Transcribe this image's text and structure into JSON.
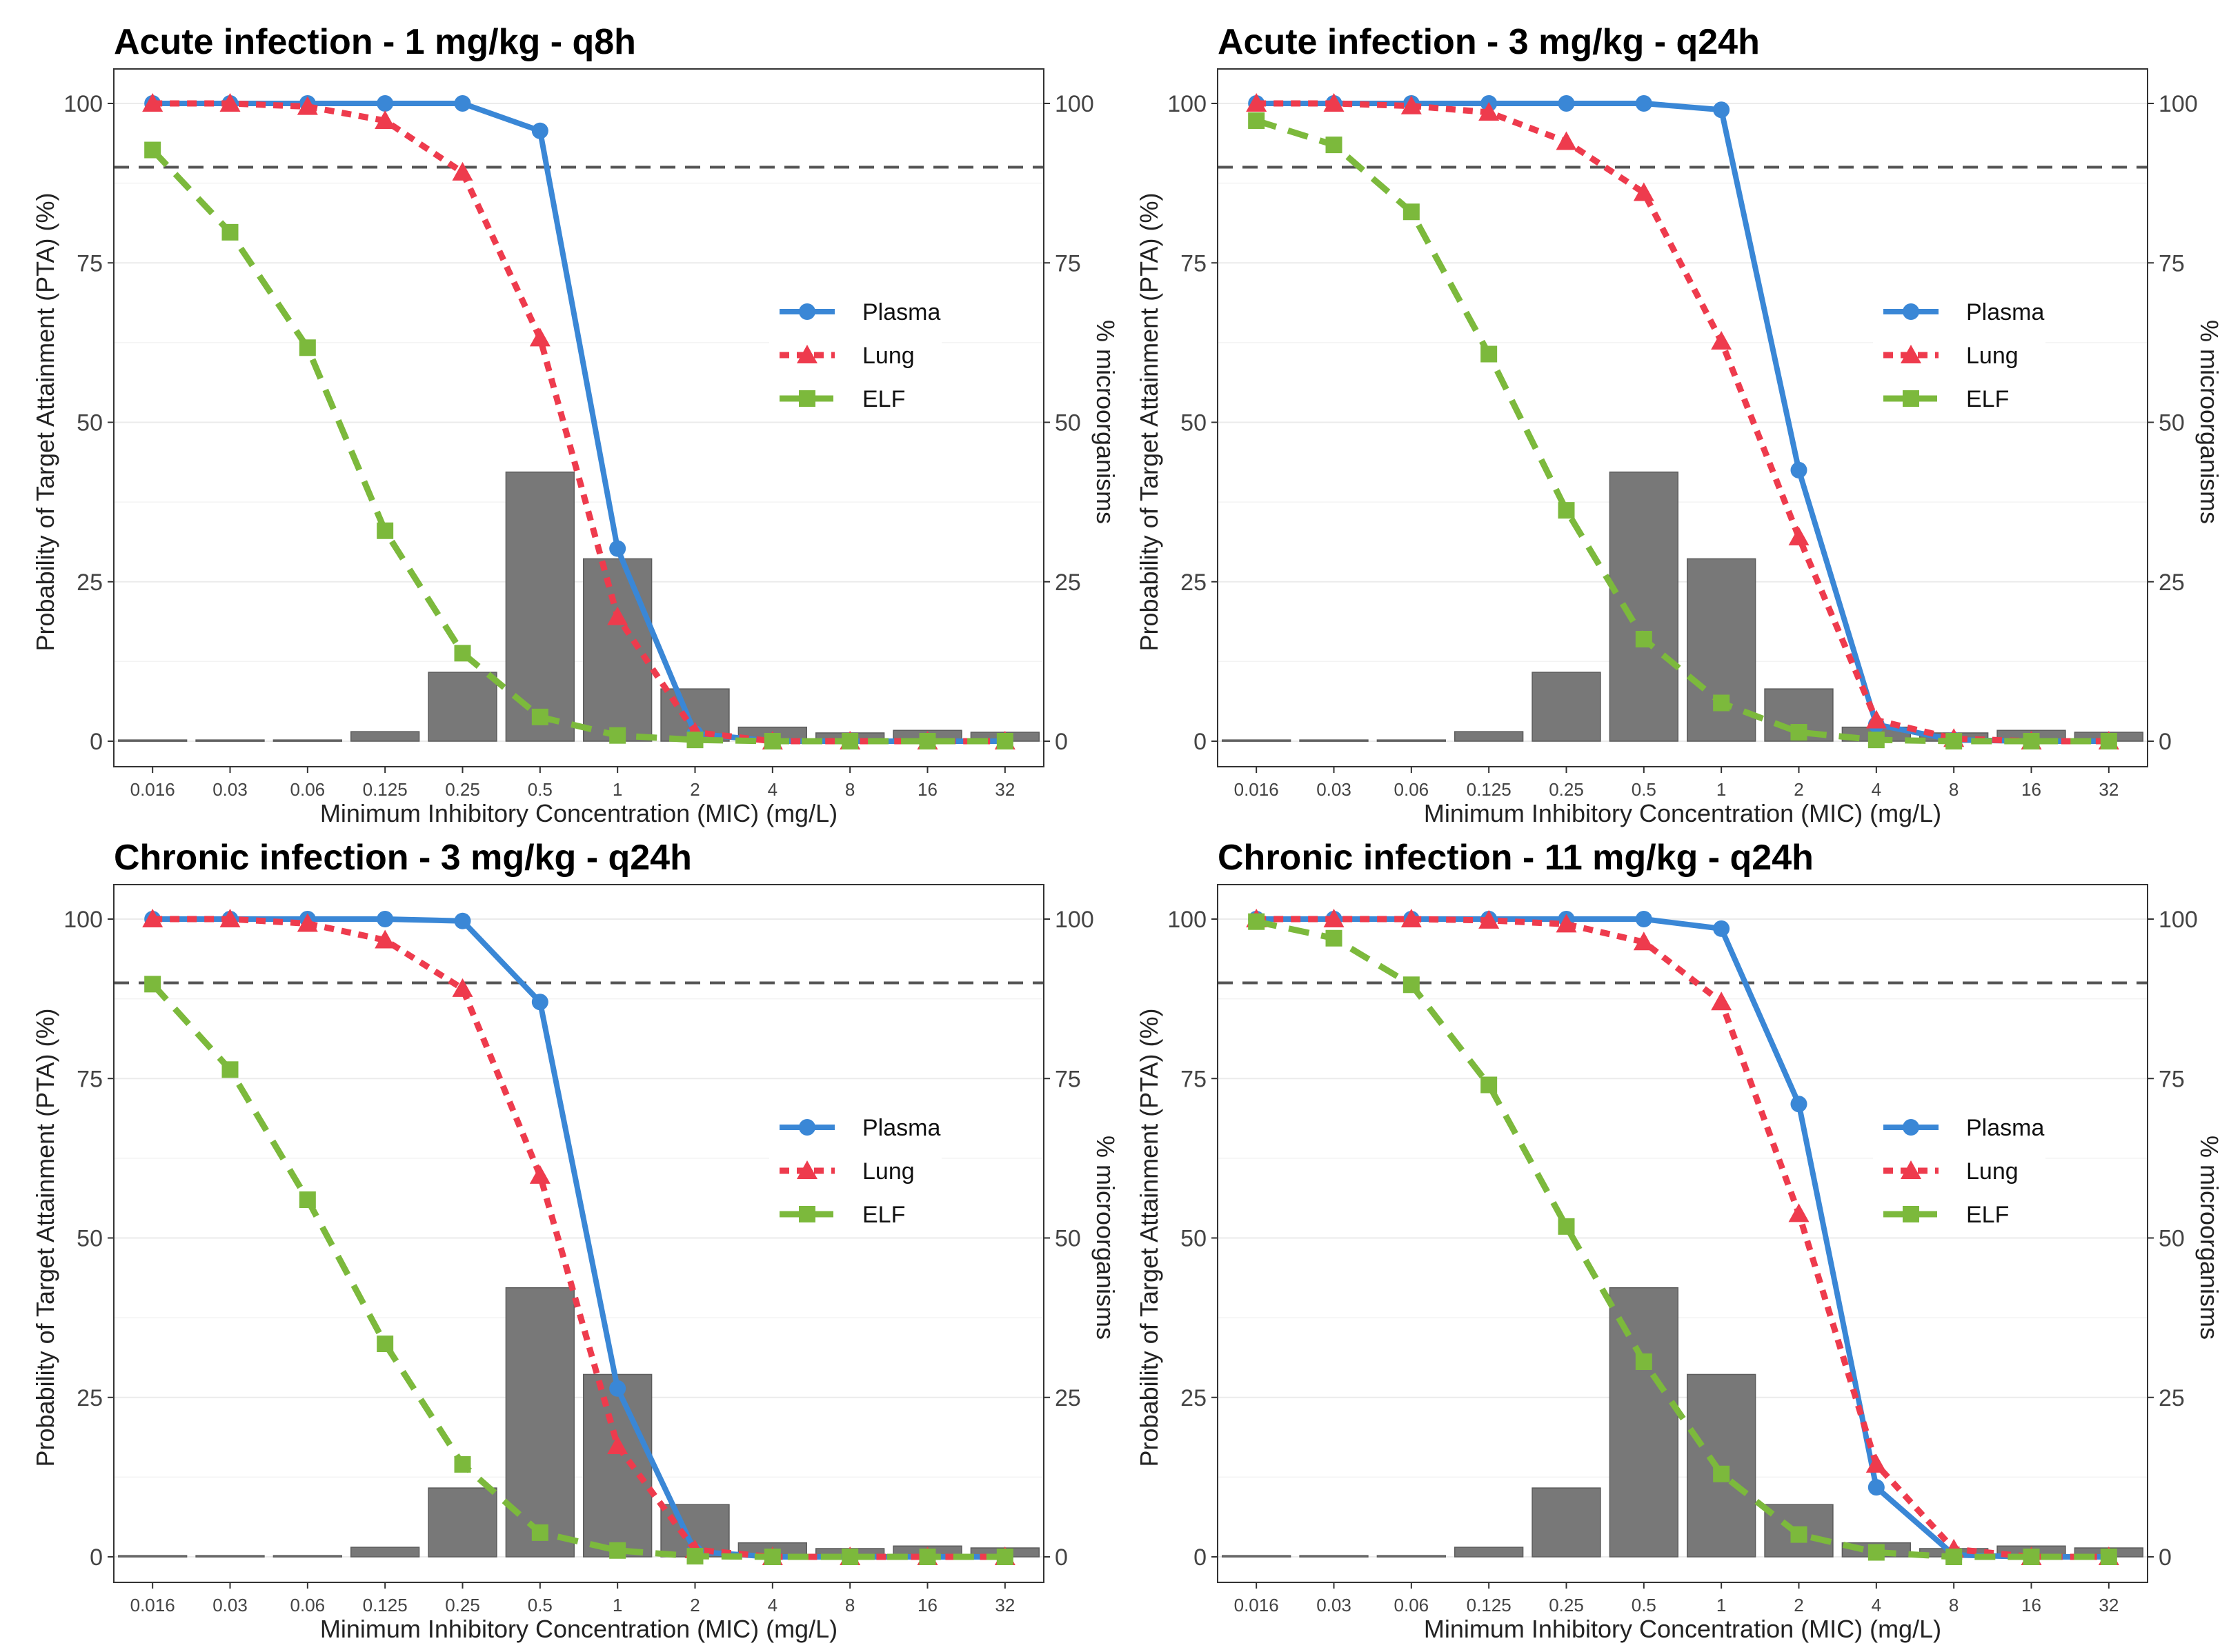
{
  "chart_data": {
    "type": "line",
    "xlabel": "Minimum Inhibitory Concentration (MIC) (mg/L)",
    "ylabel": "Probability of Target Attainment (PTA) (%)",
    "y2label": "% microorganisms",
    "categories": [
      "0.016",
      "0.03",
      "0.06",
      "0.125",
      "0.25",
      "0.5",
      "1",
      "2",
      "4",
      "8",
      "16",
      "32"
    ],
    "ylim": [
      0,
      100
    ],
    "yticks": [
      "0",
      "25",
      "50",
      "75",
      "100"
    ],
    "target_line": 90,
    "legend_position": "center-right",
    "histogram_label": "% microorganisms",
    "histogram": [
      0.2,
      0.2,
      0.2,
      1.5,
      10.8,
      42.2,
      28.6,
      8.2,
      2.2,
      1.3,
      1.7,
      1.4
    ],
    "colors": {
      "Plasma": "#3a87d6",
      "Lung": "#ee3b4d",
      "ELF": "#7cb93c",
      "bars": "#787878",
      "target": "#555555"
    },
    "panels": [
      {
        "title": "Acute infection - 1 mg/kg - q8h",
        "series": [
          {
            "name": "Plasma",
            "values": [
              100,
              100,
              100,
              100,
              100,
              95.7,
              30.2,
              1.2,
              0,
              0,
              0,
              0
            ]
          },
          {
            "name": "Lung",
            "values": [
              100,
              100,
              99.5,
              97.3,
              89.2,
              63.2,
              19.5,
              1.4,
              0,
              0,
              0,
              0
            ]
          },
          {
            "name": "ELF",
            "values": [
              92.7,
              79.8,
              61.7,
              33.0,
              13.8,
              3.8,
              0.9,
              0.2,
              0,
              0,
              0,
              0
            ]
          }
        ]
      },
      {
        "title": "Acute infection - 3 mg/kg - q24h",
        "series": [
          {
            "name": "Plasma",
            "values": [
              100,
              100,
              100,
              100,
              100,
              100,
              99.0,
              42.5,
              2.6,
              0.2,
              0,
              0
            ]
          },
          {
            "name": "Lung",
            "values": [
              100,
              100,
              99.6,
              98.6,
              94.0,
              86.0,
              62.7,
              32.0,
              3.3,
              0.4,
              0,
              0
            ]
          },
          {
            "name": "ELF",
            "values": [
              97.3,
              93.5,
              83.0,
              60.7,
              36.2,
              16.0,
              6.0,
              1.4,
              0.2,
              0,
              0,
              0
            ]
          }
        ]
      },
      {
        "title": "Chronic infection - 3 mg/kg - q24h",
        "series": [
          {
            "name": "Plasma",
            "values": [
              100,
              100,
              100,
              100,
              99.7,
              87.0,
              26.4,
              0.8,
              0,
              0,
              0,
              0
            ]
          },
          {
            "name": "Lung",
            "values": [
              100,
              100,
              99.3,
              96.7,
              89.1,
              59.8,
              17.4,
              1.1,
              0,
              0,
              0,
              0
            ]
          },
          {
            "name": "ELF",
            "values": [
              89.8,
              76.4,
              56.0,
              33.4,
              14.5,
              3.8,
              1.0,
              0.1,
              0,
              0,
              0,
              0
            ]
          }
        ]
      },
      {
        "title": "Chronic infection - 11 mg/kg - q24h",
        "series": [
          {
            "name": "Plasma",
            "values": [
              100,
              100,
              100,
              100,
              100,
              100,
              98.5,
              71.0,
              10.9,
              0.3,
              0,
              0
            ]
          },
          {
            "name": "Lung",
            "values": [
              100,
              100,
              100,
              99.8,
              99.2,
              96.4,
              87.0,
              53.8,
              14.5,
              1.2,
              0,
              0
            ]
          },
          {
            "name": "ELF",
            "values": [
              99.6,
              97.0,
              89.7,
              74.0,
              51.8,
              30.6,
              13.0,
              3.5,
              0.7,
              0,
              0,
              0
            ]
          }
        ]
      }
    ]
  }
}
